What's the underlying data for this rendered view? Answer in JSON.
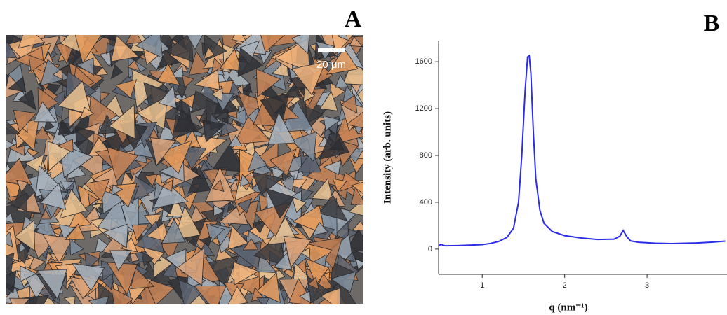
{
  "figure": {
    "panel_a": {
      "label": "A",
      "scale_bar": "20 μm"
    }
  },
  "chart_data": {
    "type": "line",
    "panel_label": "B",
    "xlabel": "q (nm⁻¹)",
    "ylabel": "Intensity (arb. units)",
    "x": [
      0.47,
      0.5,
      0.55,
      0.7,
      0.9,
      1.0,
      1.1,
      1.2,
      1.3,
      1.38,
      1.44,
      1.48,
      1.52,
      1.55,
      1.57,
      1.59,
      1.62,
      1.65,
      1.7,
      1.75,
      1.85,
      2.0,
      2.2,
      2.4,
      2.6,
      2.67,
      2.71,
      2.75,
      2.8,
      2.9,
      3.1,
      3.3,
      3.6,
      3.8,
      3.95
    ],
    "values": [
      30,
      40,
      28,
      30,
      35,
      38,
      48,
      65,
      100,
      180,
      400,
      800,
      1350,
      1640,
      1650,
      1500,
      1000,
      600,
      330,
      220,
      150,
      115,
      95,
      82,
      85,
      110,
      160,
      110,
      70,
      58,
      50,
      47,
      52,
      60,
      68
    ],
    "color": "#2b2bea",
    "xlim": [
      0.47,
      3.97
    ],
    "xticks": [
      1,
      2,
      3
    ],
    "ylim": [
      -216,
      1780
    ],
    "yticks": [
      0,
      400,
      800,
      1200,
      1600
    ]
  }
}
